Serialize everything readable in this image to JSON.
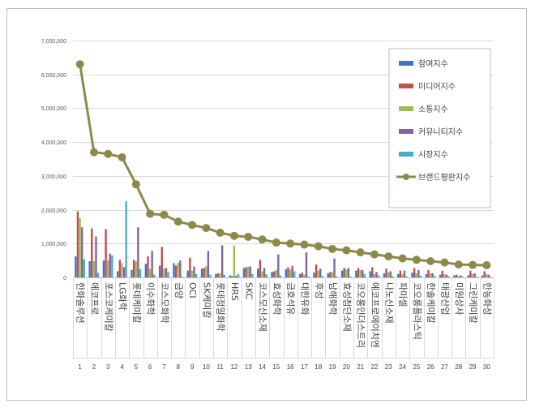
{
  "chart_data": {
    "type": "bar",
    "ylim": [
      0,
      7000000
    ],
    "yticks": [
      "0",
      "1,000,000",
      "2,000,000",
      "3,000,000",
      "4,000,000",
      "5,000,000",
      "6,000,000",
      "7,000,000"
    ],
    "gridlines": true,
    "legend_position": "top-right",
    "categories": [
      "한화솔루션",
      "에코프로",
      "포스코케미칼",
      "LG화학",
      "롯데케미칼",
      "이수화학",
      "코스모화학",
      "금양",
      "OCI",
      "SK케미칼",
      "롯데정밀화학",
      "HRS",
      "SKC",
      "코스모신소재",
      "효성화학",
      "금호석유",
      "대한유화",
      "후성",
      "남해화학",
      "효성첨단소재",
      "코오롱인더스트리",
      "에코프로에이치엔",
      "나노신소재",
      "파미셀",
      "코오롱플라스틱",
      "한솔케미칼",
      "태광산업",
      "미원상사",
      "그린케미칼",
      "한농화성"
    ],
    "ranks": [
      "1",
      "2",
      "3",
      "4",
      "5",
      "6",
      "7",
      "8",
      "9",
      "10",
      "11",
      "12",
      "13",
      "14",
      "15",
      "16",
      "17",
      "18",
      "19",
      "20",
      "21",
      "22",
      "23",
      "24",
      "25",
      "26",
      "27",
      "28",
      "29",
      "30"
    ],
    "series": [
      {
        "name": "참여지수",
        "color": "#4472C4",
        "values": [
          620000,
          480000,
          500000,
          180000,
          220000,
          400000,
          350000,
          420000,
          200000,
          260000,
          100000,
          60000,
          280000,
          260000,
          160000,
          240000,
          100000,
          140000,
          120000,
          200000,
          200000,
          180000,
          120000,
          100000,
          140000,
          100000,
          80000,
          60000,
          60000,
          60000
        ]
      },
      {
        "name": "미디어지수",
        "color": "#C0504D",
        "values": [
          1950000,
          1450000,
          1430000,
          520000,
          520000,
          620000,
          900000,
          350000,
          580000,
          280000,
          120000,
          40000,
          300000,
          520000,
          180000,
          300000,
          140000,
          380000,
          160000,
          280000,
          280000,
          300000,
          260000,
          200000,
          280000,
          220000,
          200000,
          80000,
          200000,
          180000
        ]
      },
      {
        "name": "소통지수",
        "color": "#9BBB59",
        "values": [
          1750000,
          480000,
          500000,
          420000,
          480000,
          260000,
          260000,
          430000,
          200000,
          330000,
          120000,
          940000,
          320000,
          180000,
          220000,
          240000,
          80000,
          200000,
          160000,
          230000,
          220000,
          100000,
          150000,
          100000,
          120000,
          120000,
          100000,
          40000,
          100000,
          100000
        ]
      },
      {
        "name": "커뮤니티지수",
        "color": "#8064A2",
        "values": [
          1480000,
          1210000,
          700000,
          300000,
          1480000,
          780000,
          280000,
          500000,
          320000,
          780000,
          950000,
          50000,
          320000,
          280000,
          680000,
          340000,
          740000,
          260000,
          560000,
          280000,
          220000,
          160000,
          180000,
          200000,
          220000,
          120000,
          80000,
          60000,
          120000,
          80000
        ]
      },
      {
        "name": "시장지수",
        "color": "#4BACC6",
        "values": [
          540000,
          130000,
          650000,
          2250000,
          250000,
          80000,
          160000,
          20000,
          100000,
          80000,
          80000,
          100000,
          100000,
          90000,
          60000,
          180000,
          30000,
          40000,
          30000,
          30000,
          100000,
          60000,
          40000,
          30000,
          50000,
          40000,
          30000,
          20000,
          30000,
          20000
        ]
      }
    ],
    "line": {
      "name": "브랜드평판지수",
      "color": "#8C8A4B",
      "values": [
        6300000,
        3700000,
        3650000,
        3550000,
        2750000,
        1880000,
        1850000,
        1650000,
        1550000,
        1460000,
        1320000,
        1230000,
        1200000,
        1120000,
        1030000,
        1000000,
        970000,
        920000,
        840000,
        800000,
        740000,
        680000,
        620000,
        560000,
        520000,
        480000,
        440000,
        380000,
        370000,
        360000
      ]
    }
  }
}
